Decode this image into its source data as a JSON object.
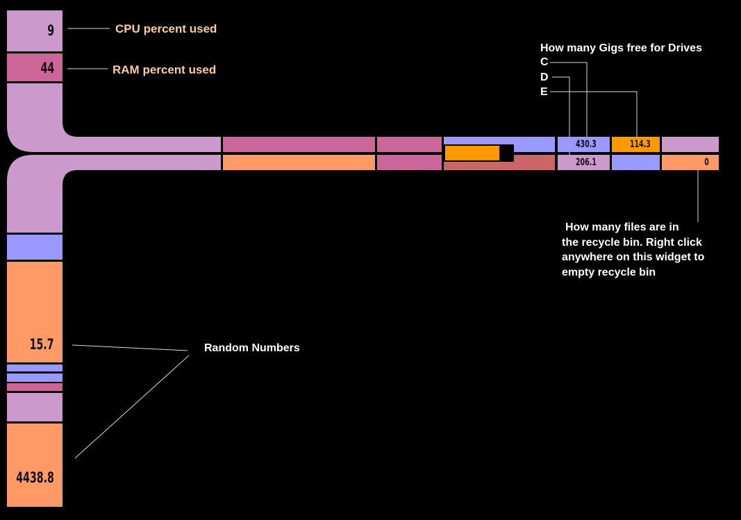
{
  "colors": {
    "lilac": "#cc99cc",
    "pink": "#cc6699",
    "blue": "#9999ff",
    "orange": "#ff9966",
    "gold": "#ff9900",
    "red": "#cc6666",
    "label": "#ffcc99"
  },
  "cpu": {
    "value": "9",
    "label": "CPU percent used"
  },
  "ram": {
    "value": "44",
    "label": "RAM percent used"
  },
  "drives": {
    "title": "How many Gigs free for Drives",
    "c_label": "C",
    "d_label": "D",
    "e_label": "E",
    "c_value": "430.3",
    "d_value": "206.1",
    "e_value": "114.3"
  },
  "recycle": {
    "value": "0",
    "lines": [
      "How many files are in",
      "the recycle bin. Right click",
      "anywhere on this widget to",
      "empty recycle bin"
    ]
  },
  "random": {
    "label": "Random Numbers",
    "value1": "15.7",
    "value2": "4438.8"
  },
  "meter": {
    "fill_percent": 80
  }
}
